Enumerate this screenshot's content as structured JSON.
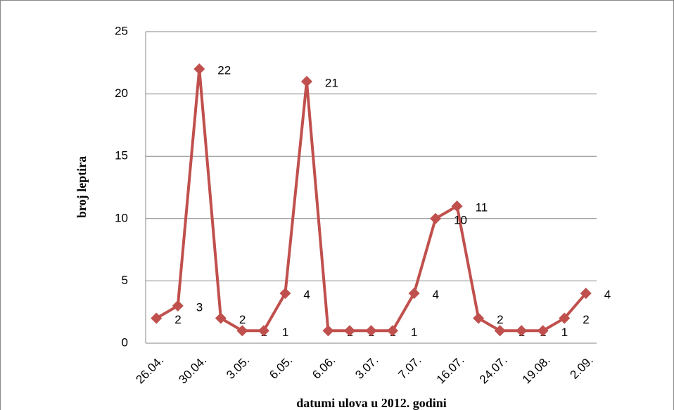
{
  "chart_data": {
    "type": "line",
    "xlabel": "datumi ulova u 2012. godini",
    "ylabel": "broj leptira",
    "categories": [
      "26.04.",
      null,
      "30.04.",
      null,
      "3.05.",
      null,
      "6.05.",
      null,
      "6.06.",
      null,
      "3.07.",
      null,
      "7.07.",
      null,
      "16.07.",
      null,
      "24.07.",
      null,
      "19.08.",
      null,
      "2.09."
    ],
    "series": [
      {
        "name": "broj leptira",
        "color": "#c0504d",
        "values": [
          2,
          3,
          22,
          2,
          1,
          1,
          4,
          21,
          1,
          1,
          1,
          1,
          4,
          10,
          11,
          2,
          1,
          1,
          1,
          2,
          4
        ]
      }
    ],
    "ylim": [
      0,
      25
    ],
    "yticks": [
      0,
      5,
      10,
      15,
      20,
      25
    ],
    "grid": true
  }
}
